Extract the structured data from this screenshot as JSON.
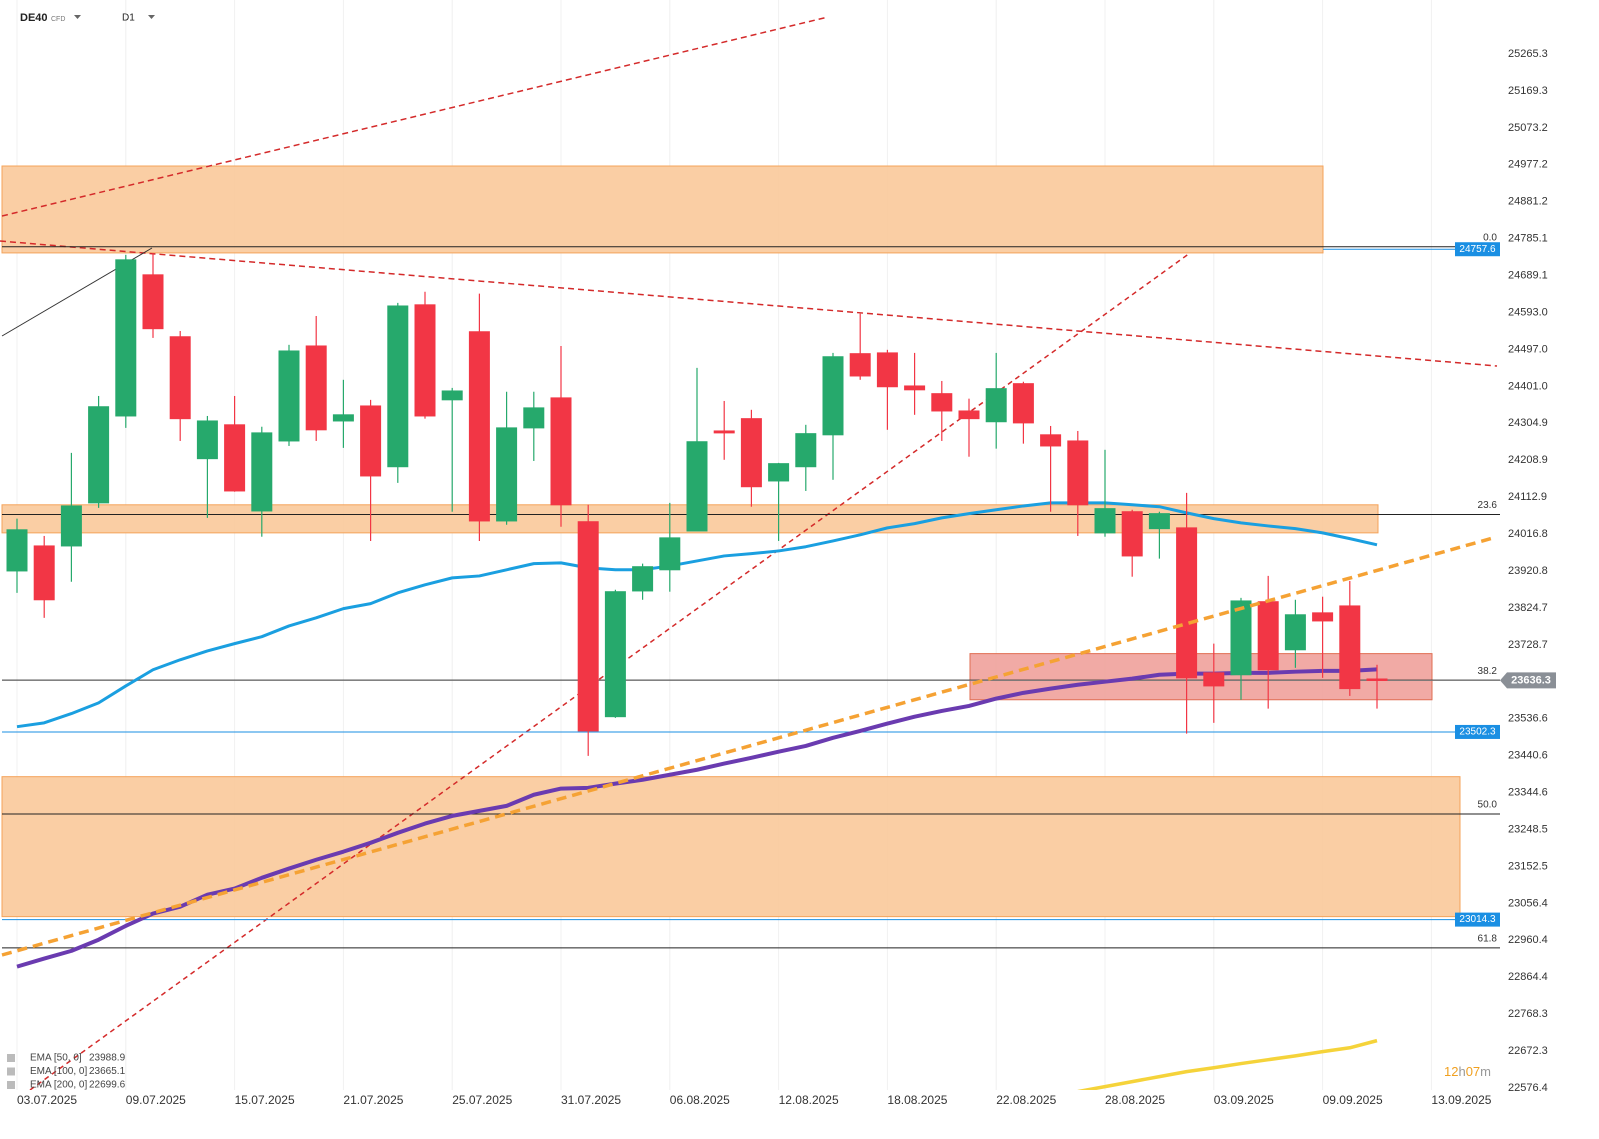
{
  "chart_data": {
    "type": "candlestick",
    "symbol": "DE40",
    "instrument": "CFD",
    "timeframe": "D1",
    "categories": [
      "03.07.2025",
      null,
      null,
      null,
      "09.07.2025",
      null,
      null,
      null,
      "15.07.2025",
      null,
      null,
      null,
      "21.07.2025",
      null,
      null,
      null,
      "25.07.2025",
      null,
      null,
      null,
      "31.07.2025",
      null,
      null,
      null,
      "06.08.2025",
      null,
      null,
      null,
      "12.08.2025",
      null,
      null,
      null,
      "18.08.2025",
      null,
      null,
      null,
      "22.08.2025",
      null,
      null,
      null,
      "28.08.2025",
      null,
      null,
      null,
      "03.09.2025",
      null,
      null,
      null,
      "09.09.2025",
      null,
      null,
      null,
      "13.09.2025"
    ],
    "open": [
      23921,
      23986,
      23986,
      24098,
      24324,
      24691,
      24530,
      24213,
      24301,
      24077,
      24259,
      24506,
      24311,
      24350,
      24192,
      24613,
      24366,
      24543,
      24051,
      24293,
      24371,
      24049,
      23542,
      23869,
      23924,
      24025,
      24285,
      24317,
      24155,
      24192,
      24275,
      24486,
      24488,
      24402,
      24382,
      24337,
      24309,
      24408,
      24275,
      24259,
      24020,
      24075,
      24031,
      24033,
      23656,
      23651,
      23841,
      23716,
      23812,
      23830,
      23640,
      null,
      null
    ],
    "high": [
      24057,
      24012,
      24228,
      24376,
      24743,
      24748,
      24545,
      24324,
      24376,
      24296,
      24509,
      24584,
      24418,
      24366,
      24618,
      24647,
      24397,
      24642,
      24387,
      24387,
      24506,
      24093,
      23872,
      23940,
      24098,
      24449,
      24363,
      24340,
      24202,
      24301,
      24488,
      24590,
      24496,
      24488,
      24415,
      24369,
      24488,
      24413,
      24298,
      24285,
      24236,
      24080,
      24075,
      24124,
      23732,
      23851,
      23908,
      23846,
      23854,
      23895,
      23677,
      null,
      null
    ],
    "low": [
      23864,
      23799,
      23893,
      24085,
      24293,
      24527,
      24259,
      24059,
      24127,
      24010,
      24246,
      24259,
      24241,
      23999,
      24150,
      24317,
      24075,
      23999,
      24041,
      24207,
      24036,
      23440,
      23539,
      23846,
      23867,
      24025,
      24210,
      24088,
      23999,
      24129,
      24158,
      24418,
      24288,
      24327,
      24259,
      24218,
      24239,
      24252,
      24075,
      24012,
      24010,
      23906,
      23953,
      23498,
      23526,
      23586,
      23563,
      23669,
      23643,
      23596,
      23563,
      null,
      null
    ],
    "close": [
      24028,
      23846,
      24090,
      24348,
      24730,
      24551,
      24317,
      24311,
      24129,
      24280,
      24493,
      24288,
      24327,
      24168,
      24610,
      24324,
      24389,
      24051,
      24293,
      24345,
      24093,
      23505,
      23867,
      23932,
      24007,
      24257,
      24280,
      24140,
      24200,
      24278,
      24478,
      24428,
      24400,
      24392,
      24337,
      24317,
      24395,
      24306,
      24246,
      24093,
      24083,
      23960,
      24070,
      23643,
      23622,
      23843,
      23664,
      23807,
      23791,
      23615,
      23636.3,
      null,
      null
    ],
    "up_color": "#26a96c",
    "down_color": "#f23645",
    "series": [
      {
        "name": "EMA [50, 0]",
        "color": "#1a9fe0",
        "values": [
          23516,
          23526,
          23550,
          23578,
          23622,
          23664,
          23690,
          23713,
          23732,
          23750,
          23778,
          23799,
          23823,
          23836,
          23864,
          23885,
          23903,
          23908,
          23924,
          23940,
          23942,
          23929,
          23924,
          23924,
          23934,
          23947,
          23960,
          23966,
          23973,
          23984,
          23999,
          24015,
          24033,
          24044,
          24059,
          24070,
          24080,
          24090,
          24098,
          24098,
          24098,
          24093,
          24088,
          24072,
          24057,
          24046,
          24038,
          24031,
          24020,
          24005,
          23988.9,
          null,
          null
        ]
      },
      {
        "name": "EMA [100, 0]",
        "color": "#6a3bb0",
        "values": [
          22892,
          22913,
          22933,
          22962,
          22998,
          23030,
          23048,
          23079,
          23095,
          23123,
          23147,
          23170,
          23191,
          23214,
          23240,
          23264,
          23284,
          23297,
          23310,
          23339,
          23355,
          23357,
          23368,
          23378,
          23391,
          23404,
          23420,
          23435,
          23451,
          23466,
          23487,
          23505,
          23524,
          23542,
          23557,
          23570,
          23589,
          23604,
          23615,
          23625,
          23633,
          23641,
          23651,
          23654,
          23654,
          23656,
          23656,
          23659,
          23661,
          23661,
          23665.1,
          null,
          null
        ]
      },
      {
        "name": "EMA [200, 0]",
        "color": "#f5d33a",
        "values": [
          null,
          null,
          null,
          null,
          null,
          null,
          null,
          null,
          null,
          null,
          null,
          null,
          null,
          null,
          null,
          null,
          null,
          null,
          null,
          null,
          null,
          null,
          null,
          null,
          null,
          null,
          null,
          null,
          null,
          null,
          null,
          null,
          null,
          null,
          null,
          null,
          null,
          null,
          null,
          22567,
          22580,
          22593,
          22606,
          22619,
          22629,
          22640,
          22650,
          22660,
          22671,
          22681,
          22699.6,
          null,
          null
        ]
      }
    ],
    "ylim": [
      22571.2,
      25405.7
    ],
    "yticks": [
      25265.3,
      25169.3,
      25073.2,
      24977.2,
      24881.2,
      24785.1,
      24689.1,
      {
        "value": 24593,
        "label": "24593.0"
      },
      {
        "value": 24497,
        "label": "24497.0"
      },
      {
        "value": 24401,
        "label": "24401.0"
      },
      24304.9,
      24208.9,
      24112.9,
      24016.8,
      23920.8,
      23824.7,
      23728.7,
      23536.6,
      23440.6,
      23344.6,
      23248.5,
      23152.5,
      23056.4,
      22960.4,
      22864.4,
      22768.3,
      22672.3,
      22576.4
    ],
    "grid": true,
    "zones": [
      {
        "top": 24974,
        "bottom": 24748,
        "color": "#f9c99a"
      },
      {
        "top": 24093,
        "bottom": 24020,
        "color": "#f9c99a"
      },
      {
        "top": 23706,
        "bottom": 23586,
        "color": "#f0a19b"
      },
      {
        "top": 23386,
        "bottom": 23022,
        "color": "#f9c99a"
      }
    ],
    "fib_range": [
      24764,
      21814
    ],
    "fib_levels": [
      {
        "value": 0,
        "label": "0.0"
      },
      23.6,
      38.2,
      {
        "value": 50,
        "label": "50.0"
      },
      61.8
    ],
    "price_lines": [
      {
        "value": 24757.6,
        "color": "#1a8fe3"
      },
      {
        "value": 23502.3,
        "color": "#1a8fe3"
      },
      {
        "value": 23014.3,
        "color": "#1a8fe3"
      }
    ],
    "last_price": 23636.3,
    "countdown": [
      "12",
      "h",
      "07",
      "m"
    ]
  }
}
